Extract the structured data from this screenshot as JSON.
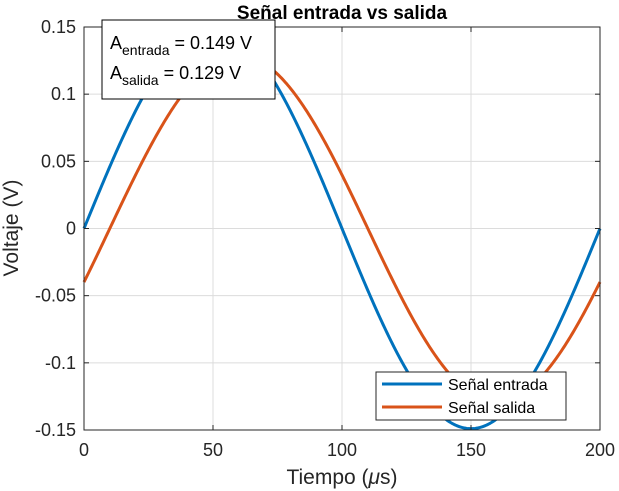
{
  "chart_data": {
    "type": "line",
    "title": "Señal entrada vs salida",
    "xlabel_prefix": "Tiempo (",
    "xlabel_unit": "μ",
    "xlabel_suffix": "s)",
    "ylabel": "Voltaje (V)",
    "xlim": [
      0,
      200
    ],
    "ylim": [
      -0.15,
      0.15
    ],
    "xticks": [
      0,
      50,
      100,
      150,
      200
    ],
    "xtick_labels": [
      "0",
      "50",
      "100",
      "150",
      "200"
    ],
    "yticks": [
      0.15,
      0.1,
      0.05,
      0,
      -0.05,
      -0.1,
      -0.15
    ],
    "ytick_labels": [
      "0.15",
      "0.1",
      "0.05",
      "0",
      "-0.05",
      "-0.1",
      "-0.15"
    ],
    "grid": true,
    "legend_position": "bottom-right",
    "series": [
      {
        "name": "Señal entrada",
        "color": "#0072BD",
        "amplitude": 0.149,
        "period": 200,
        "phase_shift": 0,
        "x": [
          0,
          25,
          50,
          75,
          100,
          125,
          150,
          175,
          200
        ],
        "y": [
          0,
          0.105,
          0.149,
          0.105,
          0,
          -0.105,
          -0.149,
          -0.105,
          0
        ]
      },
      {
        "name": "Señal salida",
        "color": "#D95319",
        "amplitude": 0.129,
        "period": 200,
        "phase_shift": 10,
        "x": [
          0,
          10,
          35,
          60,
          85,
          110,
          135,
          160,
          185,
          200
        ],
        "y": [
          -0.023,
          0,
          0.091,
          0.129,
          0.091,
          0,
          -0.091,
          -0.129,
          -0.091,
          -0.023
        ]
      }
    ],
    "annotation": {
      "line1_main": "A",
      "line1_sub": "entrada",
      "line1_value": " = 0.149 V",
      "line2_main": "A",
      "line2_sub": "salida",
      "line2_value": "  = 0.129 V"
    }
  }
}
